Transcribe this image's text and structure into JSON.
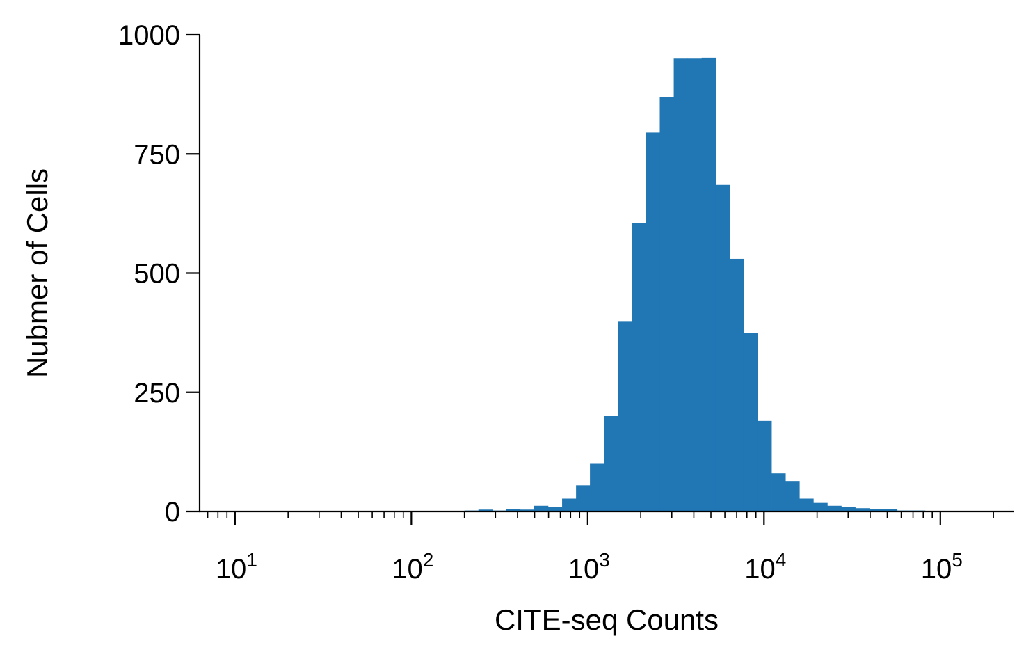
{
  "chart_data": {
    "type": "bar",
    "title": "",
    "xlabel": "CITE-seq Counts",
    "ylabel": "Nubmer of Cells",
    "xscale": "log",
    "xlim": [
      6.3,
      260000
    ],
    "ylim": [
      0,
      1000
    ],
    "yticks": [
      {
        "value": 0,
        "label": "0"
      },
      {
        "value": 250,
        "label": "250"
      },
      {
        "value": 500,
        "label": "500"
      },
      {
        "value": 750,
        "label": "750"
      },
      {
        "value": 1000,
        "label": "1000"
      }
    ],
    "xticks": [
      {
        "value": 10,
        "base": "10",
        "exp": "1"
      },
      {
        "value": 100,
        "base": "10",
        "exp": "2"
      },
      {
        "value": 1000,
        "base": "10",
        "exp": "3"
      },
      {
        "value": 10000,
        "base": "10",
        "exp": "4"
      },
      {
        "value": 100000,
        "base": "10",
        "exp": "5"
      }
    ],
    "color": "#2077b4",
    "grid": false,
    "bins": [
      {
        "x0": 200,
        "x1": 240,
        "count": 2
      },
      {
        "x0": 240,
        "x1": 288,
        "count": 4
      },
      {
        "x0": 288,
        "x1": 345,
        "count": 2
      },
      {
        "x0": 345,
        "x1": 414,
        "count": 5
      },
      {
        "x0": 414,
        "x1": 497,
        "count": 4
      },
      {
        "x0": 497,
        "x1": 596,
        "count": 12
      },
      {
        "x0": 596,
        "x1": 716,
        "count": 10
      },
      {
        "x0": 716,
        "x1": 859,
        "count": 27
      },
      {
        "x0": 859,
        "x1": 1030,
        "count": 55
      },
      {
        "x0": 1030,
        "x1": 1236,
        "count": 100
      },
      {
        "x0": 1236,
        "x1": 1484,
        "count": 200
      },
      {
        "x0": 1484,
        "x1": 1780,
        "count": 398
      },
      {
        "x0": 1780,
        "x1": 2136,
        "count": 605
      },
      {
        "x0": 2136,
        "x1": 2564,
        "count": 795
      },
      {
        "x0": 2564,
        "x1": 3077,
        "count": 870
      },
      {
        "x0": 3077,
        "x1": 3692,
        "count": 950
      },
      {
        "x0": 3692,
        "x1": 4430,
        "count": 950
      },
      {
        "x0": 4430,
        "x1": 5316,
        "count": 952
      },
      {
        "x0": 5316,
        "x1": 6380,
        "count": 685
      },
      {
        "x0": 6380,
        "x1": 7656,
        "count": 530
      },
      {
        "x0": 7656,
        "x1": 9187,
        "count": 375
      },
      {
        "x0": 9187,
        "x1": 11024,
        "count": 190
      },
      {
        "x0": 11024,
        "x1": 13229,
        "count": 80
      },
      {
        "x0": 13229,
        "x1": 15875,
        "count": 64
      },
      {
        "x0": 15875,
        "x1": 19050,
        "count": 27
      },
      {
        "x0": 19050,
        "x1": 22860,
        "count": 18
      },
      {
        "x0": 22860,
        "x1": 27432,
        "count": 12
      },
      {
        "x0": 27432,
        "x1": 32918,
        "count": 10
      },
      {
        "x0": 32918,
        "x1": 39502,
        "count": 7
      },
      {
        "x0": 39502,
        "x1": 47402,
        "count": 5
      },
      {
        "x0": 47402,
        "x1": 56883,
        "count": 5
      },
      {
        "x0": 56883,
        "x1": 68260,
        "count": 2
      },
      {
        "x0": 68260,
        "x1": 81912,
        "count": 2
      },
      {
        "x0": 81912,
        "x1": 98294,
        "count": 1
      },
      {
        "x0": 98294,
        "x1": 117953,
        "count": 1
      }
    ]
  }
}
